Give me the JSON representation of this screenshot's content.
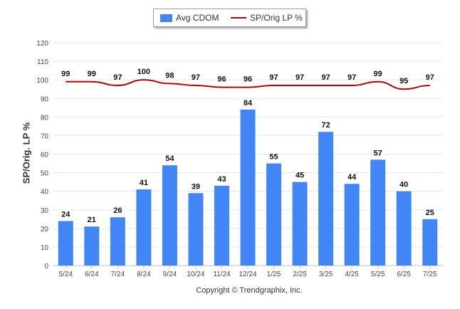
{
  "chart_data": {
    "type": "bar",
    "categories": [
      "5/24",
      "6/24",
      "7/24",
      "8/24",
      "9/24",
      "10/24",
      "11/24",
      "12/24",
      "1/25",
      "2/25",
      "3/25",
      "4/25",
      "5/25",
      "6/25",
      "7/25"
    ],
    "series": [
      {
        "name": "Avg CDOM",
        "type": "bar",
        "color": "#4285f4",
        "values": [
          24,
          21,
          26,
          41,
          54,
          39,
          43,
          84,
          55,
          45,
          72,
          44,
          57,
          40,
          25
        ]
      },
      {
        "name": "SP/Orig LP %",
        "type": "line",
        "color": "#c00000",
        "values": [
          99,
          99,
          97,
          100,
          98,
          97,
          96,
          96,
          97,
          97,
          97,
          97,
          99,
          95,
          97
        ]
      }
    ],
    "ylabel": "SP/Orig. LP %",
    "ylim": [
      0,
      120
    ],
    "yticks": [
      0,
      10,
      20,
      30,
      40,
      50,
      60,
      70,
      80,
      90,
      100,
      110,
      120
    ],
    "grid": true,
    "legend": "top-center",
    "data_labels": true
  },
  "footer": {
    "copyright": "Copyright © Trendgraphix, Inc."
  }
}
